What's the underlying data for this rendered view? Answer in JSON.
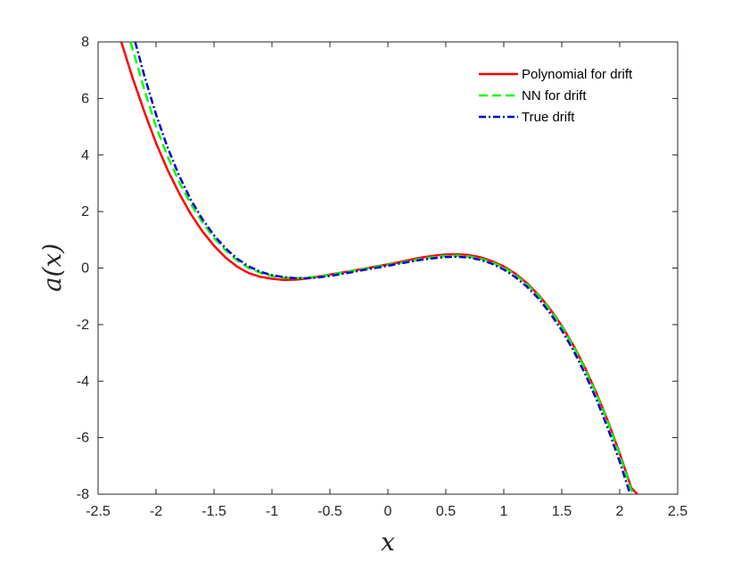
{
  "chart_data": {
    "type": "line",
    "title": "",
    "xlabel": "x",
    "ylabel": "a(x)",
    "xlim": [
      -2.5,
      2.5
    ],
    "ylim": [
      -8,
      8
    ],
    "x_ticks": [
      -2.5,
      -2,
      -1.5,
      -1,
      -0.5,
      0,
      0.5,
      1,
      1.5,
      2,
      2.5
    ],
    "x_tick_labels": [
      "-2.5",
      "-2",
      "-1.5",
      "-1",
      "-0.5",
      "0",
      "0.5",
      "1",
      "1.5",
      "2",
      "2.5"
    ],
    "y_ticks": [
      8,
      6,
      4,
      2,
      0,
      -2,
      -4,
      -6,
      -8
    ],
    "y_tick_labels": [
      "8",
      "6",
      "4",
      "2",
      "0",
      "-2",
      "-4",
      "-6",
      "-8"
    ],
    "grid": false,
    "legend_position": "top-right",
    "series": [
      {
        "name": "Polynomial for drift",
        "color": "#ff0000",
        "style": "solid",
        "x": [
          -2.3,
          -2.2,
          -2.1,
          -2.0,
          -1.9,
          -1.8,
          -1.7,
          -1.6,
          -1.5,
          -1.4,
          -1.3,
          -1.2,
          -1.1,
          -1.0,
          -0.9,
          -0.8,
          -0.7,
          -0.6,
          -0.5,
          -0.4,
          -0.3,
          -0.2,
          -0.1,
          0.0,
          0.1,
          0.2,
          0.3,
          0.4,
          0.5,
          0.6,
          0.7,
          0.8,
          0.9,
          1.0,
          1.1,
          1.2,
          1.3,
          1.4,
          1.5,
          1.6,
          1.7,
          1.8,
          1.9,
          2.0,
          2.1,
          2.2,
          2.28
        ],
        "y": [
          8.0,
          6.7,
          5.52,
          4.42,
          3.47,
          2.64,
          1.91,
          1.3,
          0.79,
          0.37,
          0.05,
          -0.18,
          -0.31,
          -0.38,
          -0.42,
          -0.41,
          -0.37,
          -0.3,
          -0.23,
          -0.16,
          -0.09,
          -0.02,
          0.06,
          0.13,
          0.21,
          0.3,
          0.38,
          0.44,
          0.48,
          0.49,
          0.46,
          0.38,
          0.24,
          0.06,
          -0.2,
          -0.53,
          -0.95,
          -1.45,
          -2.04,
          -2.73,
          -3.52,
          -4.42,
          -5.43,
          -6.55,
          -7.78,
          -8.2,
          -8.5
        ]
      },
      {
        "name": "NN for drift",
        "color": "#00ff00",
        "style": "dashed",
        "x": [
          -2.22,
          -2.1,
          -2.0,
          -1.9,
          -1.8,
          -1.7,
          -1.6,
          -1.5,
          -1.4,
          -1.3,
          -1.2,
          -1.1,
          -1.0,
          -0.9,
          -0.8,
          -0.7,
          -0.6,
          -0.5,
          -0.4,
          -0.3,
          -0.2,
          -0.1,
          0.0,
          0.1,
          0.2,
          0.3,
          0.4,
          0.5,
          0.6,
          0.7,
          0.8,
          0.9,
          1.0,
          1.1,
          1.2,
          1.3,
          1.4,
          1.5,
          1.6,
          1.7,
          1.8,
          1.9,
          2.0,
          2.1,
          2.22
        ],
        "y": [
          8.0,
          6.3,
          5.0,
          3.95,
          3.04,
          2.27,
          1.62,
          1.07,
          0.63,
          0.27,
          0.0,
          -0.17,
          -0.28,
          -0.34,
          -0.36,
          -0.34,
          -0.3,
          -0.24,
          -0.17,
          -0.1,
          -0.03,
          0.04,
          0.11,
          0.18,
          0.26,
          0.33,
          0.39,
          0.43,
          0.44,
          0.41,
          0.33,
          0.2,
          0.02,
          -0.24,
          -0.57,
          -0.98,
          -1.48,
          -2.07,
          -2.76,
          -3.56,
          -4.46,
          -5.47,
          -6.6,
          -7.85,
          -8.5
        ]
      },
      {
        "name": "True drift",
        "color": "#0000cc",
        "style": "dashdot",
        "x": [
          -2.18,
          -2.1,
          -2.0,
          -1.9,
          -1.8,
          -1.7,
          -1.6,
          -1.5,
          -1.4,
          -1.3,
          -1.2,
          -1.1,
          -1.0,
          -0.9,
          -0.8,
          -0.7,
          -0.6,
          -0.5,
          -0.4,
          -0.3,
          -0.2,
          -0.1,
          0.0,
          0.1,
          0.2,
          0.3,
          0.4,
          0.5,
          0.6,
          0.7,
          0.8,
          0.9,
          1.0,
          1.1,
          1.2,
          1.3,
          1.4,
          1.5,
          1.6,
          1.7,
          1.8,
          1.9,
          2.0,
          2.1,
          2.18
        ],
        "y": [
          8.0,
          6.79,
          5.43,
          4.26,
          3.26,
          2.42,
          1.73,
          1.16,
          0.7,
          0.33,
          0.06,
          -0.13,
          -0.25,
          -0.32,
          -0.36,
          -0.36,
          -0.33,
          -0.28,
          -0.21,
          -0.14,
          -0.06,
          0.01,
          0.08,
          0.16,
          0.23,
          0.3,
          0.35,
          0.39,
          0.4,
          0.37,
          0.29,
          0.15,
          -0.05,
          -0.32,
          -0.66,
          -1.08,
          -1.6,
          -2.2,
          -2.91,
          -3.73,
          -4.65,
          -5.69,
          -6.85,
          -8.13,
          -8.5
        ]
      }
    ]
  }
}
